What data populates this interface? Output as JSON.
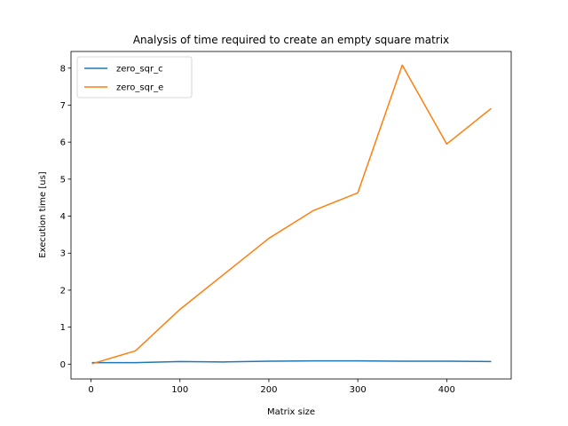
{
  "chart_data": {
    "type": "line",
    "title": "Analysis of time required to create an empty square matrix",
    "xlabel": "Matrix size",
    "ylabel": "Execution time [us]",
    "xlim": [
      -22.5,
      472.5
    ],
    "ylim": [
      -0.4,
      8.45
    ],
    "xticks": [
      0,
      100,
      200,
      300,
      400
    ],
    "yticks": [
      0,
      1,
      2,
      3,
      4,
      5,
      6,
      7,
      8
    ],
    "x": [
      1,
      50,
      100,
      150,
      200,
      250,
      300,
      350,
      400,
      450
    ],
    "series": [
      {
        "name": "zero_sqr_c",
        "color": "#1f77b4",
        "values": [
          0.04,
          0.04,
          0.07,
          0.06,
          0.08,
          0.09,
          0.09,
          0.08,
          0.08,
          0.07
        ]
      },
      {
        "name": "zero_sqr_e",
        "color": "#ff7f0e",
        "values": [
          0.01,
          0.36,
          1.48,
          2.44,
          3.4,
          4.15,
          4.63,
          8.08,
          5.95,
          6.91
        ]
      }
    ],
    "legend_position": "top-left",
    "grid": false
  }
}
